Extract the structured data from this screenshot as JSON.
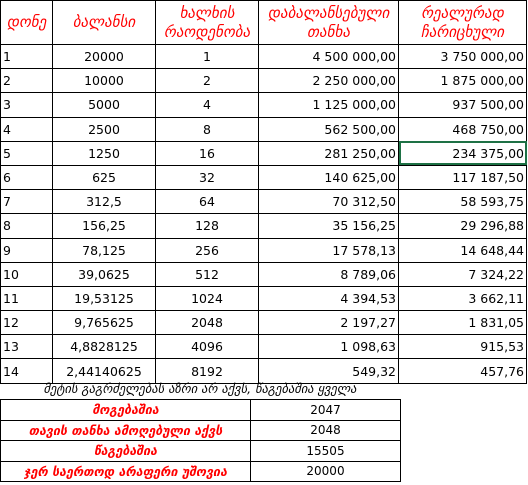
{
  "headers": [
    "დონე",
    "ბალანსი",
    "ხალხის რაოდენობა",
    "დაბალანსებული თანხა",
    "რეალურად ჩარიცხული"
  ],
  "rows": [
    {
      "level": "1",
      "balance": "20000",
      "people": "1",
      "balanced": "4 500 000,00",
      "real": "3 750 000,00"
    },
    {
      "level": "2",
      "balance": "10000",
      "people": "2",
      "balanced": "2 250 000,00",
      "real": "1 875 000,00"
    },
    {
      "level": "3",
      "balance": "5000",
      "people": "4",
      "balanced": "1 125 000,00",
      "real": "937 500,00"
    },
    {
      "level": "4",
      "balance": "2500",
      "people": "8",
      "balanced": "562 500,00",
      "real": "468 750,00"
    },
    {
      "level": "5",
      "balance": "1250",
      "people": "16",
      "balanced": "281 250,00",
      "real": "234 375,00"
    },
    {
      "level": "6",
      "balance": "625",
      "people": "32",
      "balanced": "140 625,00",
      "real": "117 187,50"
    },
    {
      "level": "7",
      "balance": "312,5",
      "people": "64",
      "balanced": "70 312,50",
      "real": "58 593,75"
    },
    {
      "level": "8",
      "balance": "156,25",
      "people": "128",
      "balanced": "35 156,25",
      "real": "29 296,88"
    },
    {
      "level": "9",
      "balance": "78,125",
      "people": "256",
      "balanced": "17 578,13",
      "real": "14 648,44"
    },
    {
      "level": "10",
      "balance": "39,0625",
      "people": "512",
      "balanced": "8 789,06",
      "real": "7 324,22"
    },
    {
      "level": "11",
      "balance": "19,53125",
      "people": "1024",
      "balanced": "4 394,53",
      "real": "3 662,11"
    },
    {
      "level": "12",
      "balance": "9,765625",
      "people": "2048",
      "balanced": "2 197,27",
      "real": "1 831,05"
    },
    {
      "level": "13",
      "balance": "4,8828125",
      "people": "4096",
      "balanced": "1 098,63",
      "real": "915,53"
    },
    {
      "level": "14",
      "balance": "2,44140625",
      "people": "8192",
      "balanced": "549,32",
      "real": "457,76"
    }
  ],
  "note": "მეტის გაგრძელებას აზრი არ აქვს, წაგებაშია ყველა",
  "summary": [
    {
      "label": "მოგებაშია",
      "value": "2047"
    },
    {
      "label": "თავის თანხა ამოღებული აქვს",
      "value": "2048"
    },
    {
      "label": "წაგებაშია",
      "value": "15505"
    },
    {
      "label": "ჯერ საერთოდ არაფერი უშოვია",
      "value": "20000"
    }
  ],
  "colors": {
    "header_text": "#ff0000",
    "selection": "#1e7145"
  }
}
